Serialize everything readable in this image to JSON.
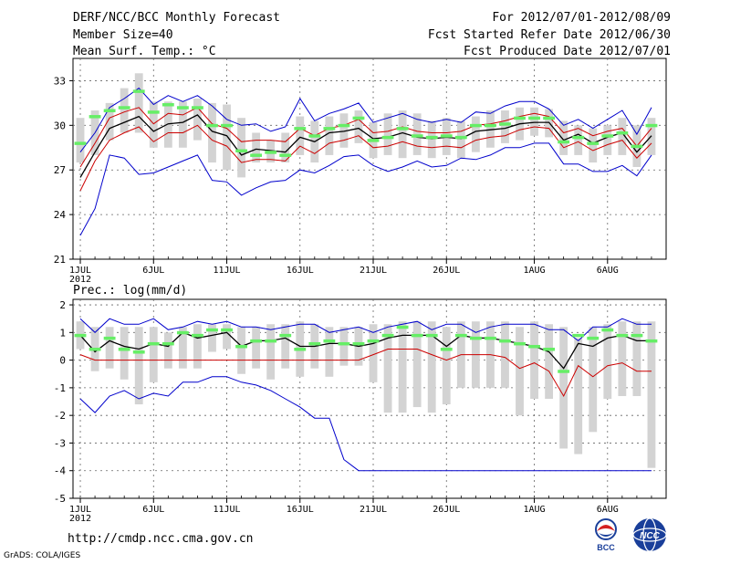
{
  "header": {
    "title": "DERF/NCC/BCC Monthly Forecast",
    "member_size": "Member Size=40",
    "variable": "Mean Surf. Temp.: °C",
    "period": "For 2012/07/01-2012/08/09",
    "start_date": "Fcst Started Refer Date 2012/06/30",
    "produced_date": "Fcst Produced Date 2012/07/01"
  },
  "footer": {
    "url": "http://cmdp.ncc.cma.gov.cn",
    "credit": "GrADS: COLA/IGES",
    "logo_bcc_label": "BCC",
    "logo_ncc_label": "NCC"
  },
  "colors": {
    "max_min": "#0000cc",
    "percentile": "#cc0000",
    "mean": "#000000",
    "box": "#d3d3d3",
    "marker": "#66ee66"
  },
  "chart_data": [
    {
      "type": "line",
      "title": "Mean Surf. Temp.: °C",
      "x_days": 40,
      "xtick_days": [
        1,
        6,
        11,
        16,
        21,
        26,
        32,
        37
      ],
      "xtick_labels": [
        "1JUL",
        "6JUL",
        "11JUL",
        "16JUL",
        "21JUL",
        "26JUL",
        "1AUG",
        "6AUG"
      ],
      "year_label": "2012",
      "ylim": [
        21,
        34.5
      ],
      "yticks": [
        21,
        24,
        27,
        30,
        33
      ],
      "series": [
        {
          "name": "max",
          "values": [
            28.2,
            29.5,
            31.2,
            31.8,
            32.5,
            31.4,
            32.0,
            31.6,
            32.0,
            31.3,
            30.4,
            30.0,
            30.1,
            29.6,
            29.9,
            31.8,
            30.3,
            30.8,
            31.1,
            31.5,
            30.2,
            30.5,
            30.8,
            30.4,
            30.2,
            30.4,
            30.2,
            30.9,
            30.8,
            31.3,
            31.6,
            31.6,
            31.1,
            30.0,
            30.4,
            29.8,
            30.4,
            31.0,
            29.4,
            31.2
          ]
        },
        {
          "name": "p_upper",
          "values": [
            27.2,
            28.8,
            30.5,
            30.9,
            31.2,
            30.1,
            30.8,
            30.7,
            31.2,
            30.1,
            29.8,
            28.9,
            29.0,
            29.0,
            28.9,
            29.8,
            29.3,
            29.8,
            30.0,
            30.4,
            29.5,
            29.6,
            29.9,
            29.6,
            29.5,
            29.5,
            29.6,
            30.0,
            30.1,
            30.3,
            30.6,
            30.8,
            30.6,
            29.5,
            29.8,
            29.3,
            29.6,
            29.8,
            28.6,
            29.8
          ]
        },
        {
          "name": "mean",
          "values": [
            26.5,
            28.2,
            29.8,
            30.2,
            30.6,
            29.6,
            30.1,
            30.2,
            30.7,
            29.6,
            29.3,
            28.0,
            28.4,
            28.3,
            28.2,
            29.2,
            28.9,
            29.5,
            29.6,
            29.8,
            29.1,
            29.2,
            29.5,
            29.2,
            29.1,
            29.2,
            29.1,
            29.6,
            29.7,
            29.8,
            30.1,
            30.2,
            30.2,
            29.0,
            29.4,
            28.8,
            29.2,
            29.5,
            28.2,
            29.3
          ]
        },
        {
          "name": "p_lower",
          "values": [
            25.6,
            27.6,
            29.0,
            29.5,
            29.9,
            28.9,
            29.5,
            29.5,
            30.0,
            29.0,
            28.6,
            27.5,
            27.7,
            27.7,
            27.6,
            28.6,
            28.1,
            28.8,
            29.0,
            29.3,
            28.5,
            28.6,
            28.9,
            28.6,
            28.5,
            28.6,
            28.5,
            29.0,
            29.2,
            29.3,
            29.7,
            29.9,
            29.8,
            28.5,
            28.9,
            28.3,
            28.7,
            29.0,
            27.8,
            28.8
          ]
        },
        {
          "name": "min",
          "values": [
            22.6,
            24.4,
            28.0,
            27.8,
            26.7,
            26.8,
            27.2,
            27.6,
            28.0,
            26.3,
            26.2,
            25.3,
            25.8,
            26.2,
            26.3,
            27.0,
            26.8,
            27.3,
            27.9,
            28.0,
            27.3,
            26.9,
            27.2,
            27.6,
            27.2,
            27.3,
            27.8,
            27.7,
            28.0,
            28.5,
            28.5,
            28.8,
            28.8,
            27.4,
            27.4,
            26.9,
            26.9,
            27.3,
            26.6,
            28.0
          ]
        }
      ],
      "boxes": {
        "name": "interquartile",
        "upper": [
          30.5,
          31.0,
          31.5,
          32.5,
          33.5,
          31.6,
          31.6,
          31.6,
          31.8,
          31.5,
          31.4,
          30.5,
          29.5,
          29.0,
          29.5,
          30.6,
          30.3,
          30.6,
          30.8,
          31.0,
          30.2,
          30.8,
          31.0,
          30.8,
          30.3,
          30.5,
          30.3,
          30.6,
          31.0,
          31.0,
          31.2,
          31.2,
          31.1,
          30.3,
          30.0,
          29.8,
          30.0,
          30.5,
          30.0,
          30.5
        ],
        "lower": [
          27.5,
          28.0,
          29.0,
          29.5,
          29.5,
          28.5,
          28.5,
          28.5,
          29.0,
          27.5,
          27.0,
          26.5,
          27.5,
          27.5,
          27.5,
          28.0,
          27.5,
          28.0,
          28.5,
          28.8,
          27.8,
          28.0,
          27.8,
          28.0,
          27.8,
          28.0,
          27.8,
          28.2,
          28.5,
          28.8,
          29.0,
          29.3,
          29.2,
          28.0,
          28.0,
          27.5,
          28.0,
          28.0,
          27.2,
          28.0
        ]
      },
      "markers": {
        "name": "green_marker",
        "values": [
          28.8,
          30.6,
          31.0,
          31.2,
          32.3,
          30.9,
          31.4,
          31.2,
          31.2,
          30.0,
          30.0,
          28.3,
          28.0,
          28.2,
          28.0,
          29.8,
          29.3,
          29.8,
          30.0,
          30.5,
          29.0,
          29.2,
          29.8,
          29.3,
          29.2,
          29.3,
          29.2,
          30.0,
          30.0,
          30.1,
          30.5,
          30.5,
          30.5,
          28.9,
          29.2,
          28.8,
          29.3,
          29.5,
          28.6,
          30.0
        ]
      }
    },
    {
      "type": "line",
      "title": "Prec.: log(mm/d)",
      "x_days": 40,
      "xtick_days": [
        1,
        6,
        11,
        16,
        21,
        26,
        32,
        37
      ],
      "xtick_labels": [
        "1JUL",
        "6JUL",
        "11JUL",
        "16JUL",
        "21JUL",
        "26JUL",
        "1AUG",
        "6AUG"
      ],
      "year_label": "2012",
      "ylim": [
        -5,
        2.2
      ],
      "yticks": [
        -5,
        -4,
        -3,
        -2,
        -1,
        0,
        1,
        2
      ],
      "series": [
        {
          "name": "max",
          "values": [
            1.5,
            1.0,
            1.5,
            1.3,
            1.3,
            1.5,
            1.1,
            1.2,
            1.4,
            1.3,
            1.4,
            1.2,
            1.2,
            1.1,
            1.2,
            1.3,
            1.3,
            1.0,
            1.1,
            1.2,
            1.0,
            1.2,
            1.3,
            1.4,
            1.1,
            1.3,
            1.3,
            1.0,
            1.2,
            1.3,
            1.3,
            1.3,
            1.1,
            1.1,
            0.7,
            1.2,
            1.2,
            1.5,
            1.3,
            1.3
          ]
        },
        {
          "name": "mean",
          "values": [
            0.9,
            0.3,
            0.7,
            0.5,
            0.4,
            0.6,
            0.5,
            1.0,
            0.8,
            0.9,
            1.0,
            0.5,
            0.7,
            0.7,
            0.8,
            0.5,
            0.5,
            0.6,
            0.6,
            0.5,
            0.6,
            0.8,
            0.9,
            0.9,
            0.9,
            0.5,
            0.9,
            0.8,
            0.8,
            0.7,
            0.6,
            0.5,
            0.3,
            -0.3,
            0.6,
            0.5,
            0.8,
            0.9,
            0.7,
            0.7
          ]
        },
        {
          "name": "p_lower",
          "values": [
            0.2,
            0.0,
            0.0,
            0.0,
            0.0,
            0.0,
            0.0,
            0.0,
            0.0,
            0.0,
            0.0,
            0.0,
            0.0,
            0.0,
            0.0,
            0.0,
            0.0,
            0.0,
            0.0,
            0.0,
            0.2,
            0.4,
            0.4,
            0.4,
            0.2,
            0.0,
            0.2,
            0.2,
            0.2,
            0.1,
            -0.3,
            -0.1,
            -0.4,
            -1.3,
            -0.2,
            -0.6,
            -0.2,
            -0.1,
            -0.4,
            -0.4
          ]
        },
        {
          "name": "min",
          "values": [
            -1.4,
            -1.9,
            -1.3,
            -1.1,
            -1.4,
            -1.2,
            -1.3,
            -0.8,
            -0.8,
            -0.6,
            -0.6,
            -0.8,
            -0.9,
            -1.1,
            -1.4,
            -1.7,
            -2.1,
            -2.1,
            -3.6,
            -4.0,
            -4.0,
            -4.0,
            -4.0,
            -4.0,
            -4.0,
            -4.0,
            -4.0,
            -4.0,
            -4.0,
            -4.0,
            -4.0,
            -4.0,
            -4.0,
            -4.0,
            -4.0,
            -4.0,
            -4.0,
            -4.0,
            -4.0,
            -4.0
          ]
        }
      ],
      "boxes": {
        "name": "interquartile",
        "upper": [
          1.4,
          1.2,
          1.2,
          1.2,
          1.2,
          1.2,
          1.0,
          1.2,
          1.3,
          1.3,
          1.3,
          1.2,
          1.2,
          1.3,
          1.3,
          1.4,
          1.3,
          1.2,
          1.2,
          1.2,
          1.3,
          1.3,
          1.4,
          1.4,
          1.4,
          1.2,
          1.4,
          1.4,
          1.4,
          1.4,
          1.2,
          1.4,
          1.3,
          1.2,
          0.8,
          1.2,
          1.3,
          1.4,
          1.4,
          1.4
        ],
        "lower": [
          0.4,
          -0.4,
          -0.3,
          -0.7,
          -1.6,
          -0.8,
          -0.3,
          -0.3,
          -0.3,
          0.3,
          0.4,
          -0.5,
          -0.3,
          -0.7,
          -0.3,
          -0.6,
          -0.3,
          -0.6,
          -0.2,
          -0.2,
          -0.8,
          -1.9,
          -1.9,
          -1.7,
          -1.9,
          -1.6,
          -1.0,
          -1.0,
          -1.0,
          -1.0,
          -2.0,
          -1.4,
          -1.4,
          -3.2,
          -3.4,
          -2.6,
          -1.4,
          -1.3,
          -1.3,
          -3.9
        ]
      },
      "markers": {
        "name": "green_marker",
        "values": [
          0.9,
          0.4,
          0.8,
          0.4,
          0.3,
          0.6,
          0.6,
          1.0,
          0.9,
          1.1,
          1.1,
          0.5,
          0.7,
          0.7,
          0.9,
          0.4,
          0.6,
          0.7,
          0.6,
          0.6,
          0.7,
          0.9,
          1.2,
          0.9,
          0.9,
          0.4,
          0.9,
          0.8,
          0.8,
          0.7,
          0.6,
          0.5,
          0.4,
          -0.4,
          0.9,
          0.8,
          1.1,
          0.9,
          0.9,
          0.7
        ]
      }
    }
  ]
}
